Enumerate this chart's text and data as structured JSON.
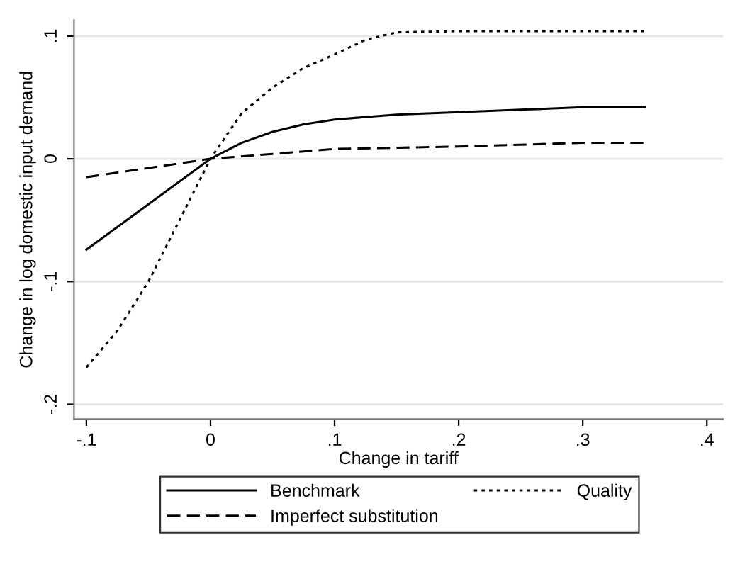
{
  "chart_data": {
    "type": "line",
    "xlabel": "Change in tariff",
    "ylabel": "Change in log domestic input demand",
    "xlim": [
      -0.11,
      0.413
    ],
    "xticks": [
      {
        "value": -0.1,
        "label": "-.1"
      },
      0,
      {
        "value": 0.1,
        "label": ".1"
      },
      {
        "value": 0.2,
        "label": ".2"
      },
      {
        "value": 0.3,
        "label": ".3"
      },
      {
        "value": 0.4,
        "label": ".4"
      }
    ],
    "ylim": [
      -0.212,
      0.113
    ],
    "yticks": [
      {
        "value": -0.2,
        "label": "-.2"
      },
      {
        "value": -0.1,
        "label": "-.1"
      },
      0,
      {
        "value": 0.1,
        "label": ".1"
      }
    ],
    "grid": "y",
    "legend": "bottom",
    "marker": "none",
    "series": [
      {
        "name": "Benchmark",
        "color": "#000000",
        "line_style": "solid",
        "x": [
          -0.1,
          -0.05,
          0,
          0.025,
          0.05,
          0.075,
          0.1,
          0.15,
          0.2,
          0.25,
          0.3,
          0.35
        ],
        "values": [
          -0.074,
          -0.037,
          0,
          0.013,
          0.022,
          0.028,
          0.032,
          0.036,
          0.038,
          0.04,
          0.042,
          0.042
        ]
      },
      {
        "name": "Imperfect substitution",
        "color": "#000000",
        "line_style": "dashed",
        "x": [
          -0.1,
          0,
          0.05,
          0.1,
          0.2,
          0.3,
          0.35
        ],
        "values": [
          -0.015,
          0,
          0.004,
          0.008,
          0.01,
          0.013,
          0.013
        ]
      },
      {
        "name": "Quality",
        "color": "#000000",
        "line_style": "dotted",
        "x": [
          -0.1,
          -0.075,
          -0.05,
          -0.025,
          0,
          0.025,
          0.05,
          0.075,
          0.1,
          0.125,
          0.15,
          0.2,
          0.35
        ],
        "values": [
          -0.17,
          -0.14,
          -0.1,
          -0.05,
          0,
          0.037,
          0.058,
          0.074,
          0.085,
          0.097,
          0.103,
          0.104,
          0.104
        ]
      }
    ]
  }
}
